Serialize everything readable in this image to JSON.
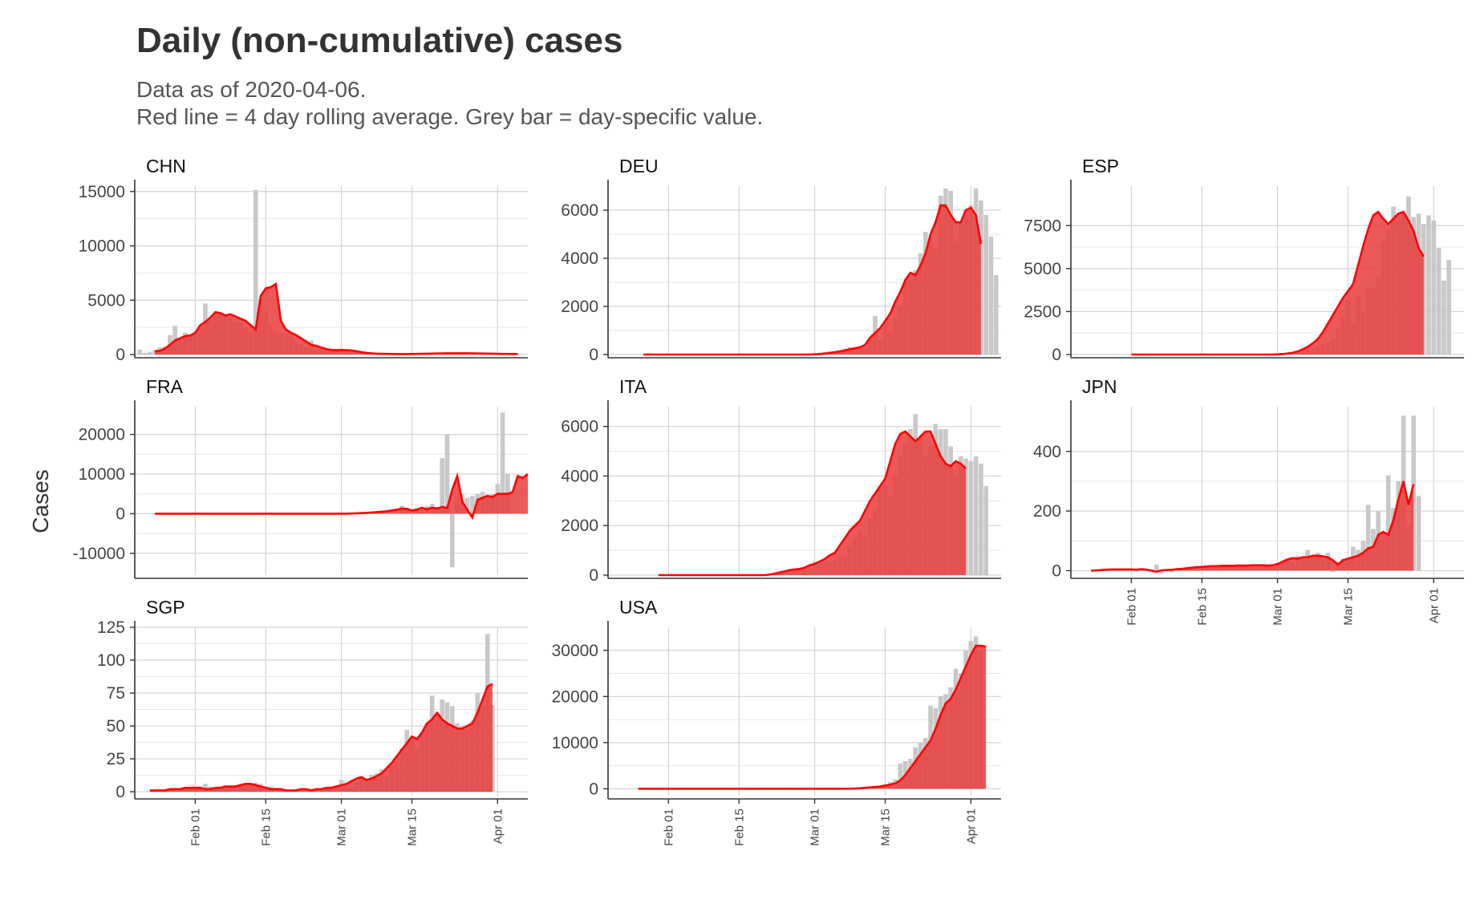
{
  "title": "Daily (non-cumulative) cases",
  "subtitle_lines": [
    "Data as of 2020-04-06.",
    "Red line = 4 day rolling average. Grey bar = day-specific value."
  ],
  "colors": {
    "line": "#ff0000",
    "area": "#e83c3c",
    "bar": "#c8c8c8",
    "grid": "#d3d3d3",
    "axis": "#333333"
  },
  "chart_data": {
    "type": "bar",
    "ylabel": "Cases",
    "x_ticks": [
      "Feb 01",
      "Feb 15",
      "Mar 01",
      "Mar 15",
      "Apr 01"
    ],
    "panels": [
      {
        "name": "CHN",
        "ylim": [
          0,
          15500
        ],
        "yticks": [
          0,
          5000,
          10000,
          15000
        ],
        "ytick_labels": [
          "0",
          "5000",
          "10000",
          "15000"
        ],
        "xlim": [
          "2020-01-20",
          "2020-04-07"
        ],
        "bars_start": "2020-01-21",
        "bars": [
          450,
          150,
          250,
          450,
          650,
          750,
          1800,
          2650,
          1500,
          2000,
          1750,
          1950,
          2600,
          4700,
          3200,
          3900,
          3900,
          3700,
          3400,
          3000,
          2900,
          2500,
          2000,
          15150,
          5100,
          4000,
          2600,
          2000,
          2000,
          1900,
          1800,
          1200,
          900,
          650,
          1300,
          400,
          600,
          400,
          500,
          450,
          300,
          200,
          150,
          150,
          100,
          50,
          50,
          40,
          30,
          30,
          20,
          20,
          20,
          20,
          30,
          40,
          40,
          50,
          80,
          100,
          100,
          100,
          100,
          110,
          100,
          100,
          90,
          80,
          80,
          70,
          60,
          50,
          50
        ],
        "line_start": "2020-01-24",
        "line": [
          300,
          350,
          550,
          900,
          1300,
          1500,
          1700,
          1750,
          2000,
          2700,
          3000,
          3400,
          3900,
          3800,
          3600,
          3700,
          3500,
          3300,
          3100,
          2700,
          2300,
          5400,
          6100,
          6200,
          6500,
          3100,
          2300,
          2000,
          1800,
          1500,
          1200,
          900,
          800,
          650,
          500,
          420,
          400,
          430,
          400,
          380,
          300,
          220,
          150,
          110,
          80,
          70,
          60,
          50,
          40,
          40,
          40,
          50,
          60,
          70,
          80,
          90,
          100,
          110,
          120,
          120,
          120,
          120,
          115,
          110,
          100,
          95,
          90,
          80,
          70,
          60,
          55,
          50,
          50
        ]
      },
      {
        "name": "DEU",
        "ylim": [
          0,
          7000
        ],
        "yticks": [
          0,
          2000,
          4000,
          6000
        ],
        "ytick_labels": [
          "0",
          "2000",
          "4000",
          "6000"
        ],
        "xlim": [
          "2020-01-20",
          "2020-04-07"
        ],
        "bars_start": "2020-03-01",
        "bars": [
          50,
          80,
          100,
          150,
          150,
          200,
          250,
          300,
          200,
          350,
          250,
          600,
          1600,
          600,
          1200,
          900,
          1500,
          2000,
          3000,
          3100,
          3500,
          4200,
          5100,
          4800,
          4400,
          6600,
          6900,
          6800,
          4700,
          5500,
          6000,
          6200,
          6900,
          6400,
          5800,
          4900,
          3300
        ],
        "line_start": "2020-01-27",
        "line": [
          0,
          0,
          0,
          0,
          0,
          0,
          0,
          0,
          0,
          0,
          0,
          0,
          0,
          0,
          0,
          0,
          0,
          0,
          0,
          0,
          0,
          0,
          0,
          0,
          0,
          0,
          0,
          0,
          0,
          0,
          0,
          0,
          0,
          0,
          10,
          20,
          40,
          60,
          100,
          130,
          170,
          220,
          260,
          300,
          400,
          700,
          900,
          1100,
          1400,
          1700,
          2200,
          2600,
          3100,
          3400,
          3300,
          3700,
          4200,
          5000,
          5500,
          6200,
          6200,
          5800,
          5500,
          5500,
          6000,
          6100,
          5800,
          4600
        ]
      },
      {
        "name": "ESP",
        "ylim": [
          0,
          9800
        ],
        "yticks": [
          0,
          2500,
          5000,
          7500
        ],
        "ytick_labels": [
          "0",
          "2500",
          "5000",
          "7500"
        ],
        "xlim": [
          "2020-01-20",
          "2020-04-07"
        ],
        "bars_start": "2020-03-05",
        "bars": [
          100,
          200,
          300,
          400,
          500,
          600,
          700,
          900,
          1500,
          2100,
          3200,
          1900,
          3400,
          2500,
          3900,
          3900,
          4500,
          6600,
          7200,
          8600,
          7800,
          8200,
          9200,
          8000,
          8200,
          7600,
          8100,
          7800,
          6200,
          4300,
          5500
        ],
        "line_start": "2020-02-01",
        "line": [
          0,
          0,
          0,
          0,
          0,
          0,
          0,
          0,
          0,
          0,
          0,
          0,
          0,
          0,
          0,
          0,
          0,
          0,
          0,
          0,
          0,
          0,
          0,
          0,
          0,
          0,
          0,
          0,
          0,
          10,
          30,
          60,
          100,
          180,
          300,
          450,
          650,
          900,
          1300,
          1800,
          2300,
          2800,
          3300,
          3700,
          4100,
          5200,
          6300,
          7300,
          8100,
          8300,
          7900,
          7600,
          7900,
          8200,
          8300,
          7800,
          7200,
          6200,
          5700
        ]
      },
      {
        "name": "FRA",
        "ylim": [
          -15500,
          27000
        ],
        "yticks": [
          -10000,
          0,
          10000,
          20000
        ],
        "ytick_labels": [
          "-10000",
          "0",
          "10000",
          "20000"
        ],
        "xlim": [
          "2020-01-20",
          "2020-04-07"
        ],
        "bars_start": "2020-03-13",
        "bars": [
          2000,
          1500,
          800,
          1500,
          500,
          2000,
          2500,
          1700,
          14000,
          20000,
          -13500,
          4000,
          5000,
          4000,
          4500,
          5000,
          5500,
          4800,
          5000,
          7500,
          25500,
          10000
        ],
        "line_start": "2020-01-24",
        "line": [
          0,
          0,
          0,
          0,
          0,
          0,
          0,
          0,
          0,
          0,
          0,
          0,
          0,
          0,
          0,
          0,
          0,
          0,
          0,
          0,
          0,
          0,
          0,
          0,
          0,
          0,
          0,
          0,
          0,
          0,
          0,
          0,
          0,
          0,
          0,
          0,
          0,
          0,
          0,
          50,
          100,
          150,
          200,
          300,
          400,
          500,
          600,
          800,
          1000,
          1300,
          1200,
          800,
          1000,
          1500,
          1100,
          1500,
          1300,
          1700,
          1400,
          6000,
          9500,
          3000,
          1000,
          -1000,
          3500,
          4000,
          4500,
          4200,
          5000,
          5000,
          5000,
          5500,
          9500,
          9000,
          10000
        ]
      },
      {
        "name": "ITA",
        "ylim": [
          0,
          6800
        ],
        "yticks": [
          0,
          2000,
          4000,
          6000
        ],
        "ytick_labels": [
          "0",
          "2000",
          "4000",
          "6000"
        ],
        "xlim": [
          "2020-01-20",
          "2020-04-07"
        ],
        "bars_start": "2020-02-22",
        "bars": [
          80,
          100,
          150,
          200,
          250,
          250,
          250,
          240,
          550,
          450,
          500,
          550,
          600,
          750,
          800,
          1200,
          1500,
          1800,
          1600,
          2300,
          2600,
          3500,
          3600,
          3200,
          4000,
          4800,
          5300,
          5900,
          6500,
          5500,
          4800,
          5200,
          6100,
          5900,
          5900,
          5200,
          4000,
          4800,
          4700,
          4600,
          4800,
          4500,
          3600
        ],
        "line_start": "2020-01-30",
        "line": [
          0,
          0,
          0,
          0,
          0,
          0,
          0,
          0,
          0,
          0,
          0,
          0,
          0,
          0,
          0,
          0,
          0,
          0,
          0,
          0,
          0,
          0,
          20,
          60,
          100,
          150,
          200,
          230,
          250,
          300,
          400,
          450,
          550,
          650,
          800,
          900,
          1200,
          1500,
          1800,
          2000,
          2200,
          2600,
          3000,
          3300,
          3600,
          3900,
          4600,
          5300,
          5700,
          5800,
          5600,
          5400,
          5600,
          5800,
          5800,
          5300,
          4800,
          4500,
          4400,
          4600,
          4500,
          4300
        ]
      },
      {
        "name": "JPN",
        "ylim": [
          -15,
          550
        ],
        "yticks": [
          0,
          200,
          400
        ],
        "ytick_labels": [
          "0",
          "200",
          "400"
        ],
        "xlim": [
          "2020-01-20",
          "2020-04-07"
        ],
        "bars_start": "2020-01-25",
        "bars": [
          0,
          0,
          2,
          3,
          5,
          4,
          5,
          3,
          6,
          5,
          3,
          4,
          20,
          -10,
          3,
          -5,
          2,
          5,
          4,
          8,
          10,
          12,
          14,
          10,
          12,
          15,
          20,
          18,
          20,
          15,
          12,
          18,
          20,
          15,
          18,
          20,
          25,
          30,
          40,
          30,
          50,
          40,
          70,
          50,
          60,
          40,
          60,
          -5,
          30,
          40,
          40,
          80,
          70,
          100,
          220,
          140,
          200,
          120,
          320,
          210,
          300,
          520,
          150,
          520,
          250
        ],
        "line_start": "2020-01-24",
        "line": [
          0,
          1,
          2,
          3,
          4,
          4,
          4,
          4,
          4,
          3,
          5,
          3,
          0,
          -4,
          1,
          2,
          3,
          5,
          6,
          8,
          10,
          12,
          12,
          14,
          15,
          15,
          16,
          16,
          16,
          17,
          17,
          17,
          18,
          18,
          18,
          17,
          18,
          22,
          30,
          38,
          42,
          40,
          45,
          45,
          50,
          50,
          48,
          45,
          35,
          20,
          35,
          40,
          45,
          50,
          60,
          75,
          80,
          120,
          130,
          120,
          170,
          240,
          300,
          220,
          290
        ]
      },
      {
        "name": "SGP",
        "ylim": [
          -3,
          125
        ],
        "yticks": [
          0,
          25,
          50,
          75,
          100,
          125
        ],
        "ytick_labels": [
          "0",
          "25",
          "50",
          "75",
          "100",
          "125"
        ],
        "xlim": [
          "2020-01-20",
          "2020-04-07"
        ],
        "bars_start": "2020-01-24",
        "bars": [
          1,
          2,
          0,
          1,
          2,
          2,
          3,
          3,
          4,
          4,
          6,
          4,
          3,
          4,
          5,
          3,
          5,
          6,
          5,
          6,
          7,
          6,
          4,
          4,
          3,
          2,
          2,
          1,
          1,
          2,
          2,
          1,
          1,
          2,
          2,
          3,
          4,
          9,
          5,
          4,
          7,
          12,
          9,
          13,
          14,
          17,
          12,
          20,
          23,
          33,
          47,
          40,
          32,
          45,
          52,
          73,
          55,
          70,
          68,
          65,
          52,
          50,
          47,
          54,
          75,
          65,
          120,
          66
        ],
        "line_start": "2020-01-23",
        "line": [
          1,
          1,
          1,
          1,
          2,
          2,
          2,
          3,
          3,
          3,
          3,
          2,
          2,
          3,
          3,
          4,
          4,
          4,
          5,
          6,
          6,
          5,
          4,
          3,
          2,
          2,
          2,
          1,
          1,
          1,
          2,
          2,
          1,
          2,
          2,
          3,
          3,
          4,
          5,
          6,
          8,
          10,
          11,
          9,
          10,
          12,
          14,
          18,
          22,
          27,
          32,
          37,
          42,
          40,
          45,
          52,
          55,
          60,
          55,
          52,
          50,
          48,
          48,
          50,
          52,
          60,
          70,
          80,
          82
        ]
      },
      {
        "name": "USA",
        "ylim": [
          -1500,
          35000
        ],
        "yticks": [
          0,
          10000,
          20000,
          30000
        ],
        "ytick_labels": [
          "0",
          "10000",
          "20000",
          "30000"
        ],
        "xlim": [
          "2020-01-20",
          "2020-04-07"
        ],
        "bars_start": "2020-03-10",
        "bars": [
          200,
          300,
          400,
          500,
          700,
          1000,
          1500,
          2000,
          5500,
          6000,
          6500,
          9000,
          10000,
          11000,
          18000,
          17500,
          20000,
          20500,
          22000,
          26000,
          25000,
          30000,
          32000,
          33000,
          30000
        ],
        "line_start": "2020-01-26",
        "line": [
          0,
          0,
          0,
          0,
          0,
          0,
          0,
          0,
          0,
          0,
          0,
          0,
          0,
          0,
          0,
          0,
          0,
          0,
          0,
          0,
          0,
          0,
          0,
          0,
          0,
          0,
          0,
          0,
          0,
          0,
          0,
          0,
          0,
          0,
          0,
          0,
          0,
          0,
          0,
          0,
          0,
          0,
          20,
          50,
          100,
          200,
          300,
          400,
          500,
          700,
          900,
          1200,
          1800,
          3000,
          4500,
          6000,
          7500,
          9000,
          10500,
          13000,
          16000,
          18500,
          19500,
          21500,
          24000,
          26500,
          29000,
          31000,
          31000,
          30800
        ]
      }
    ]
  }
}
